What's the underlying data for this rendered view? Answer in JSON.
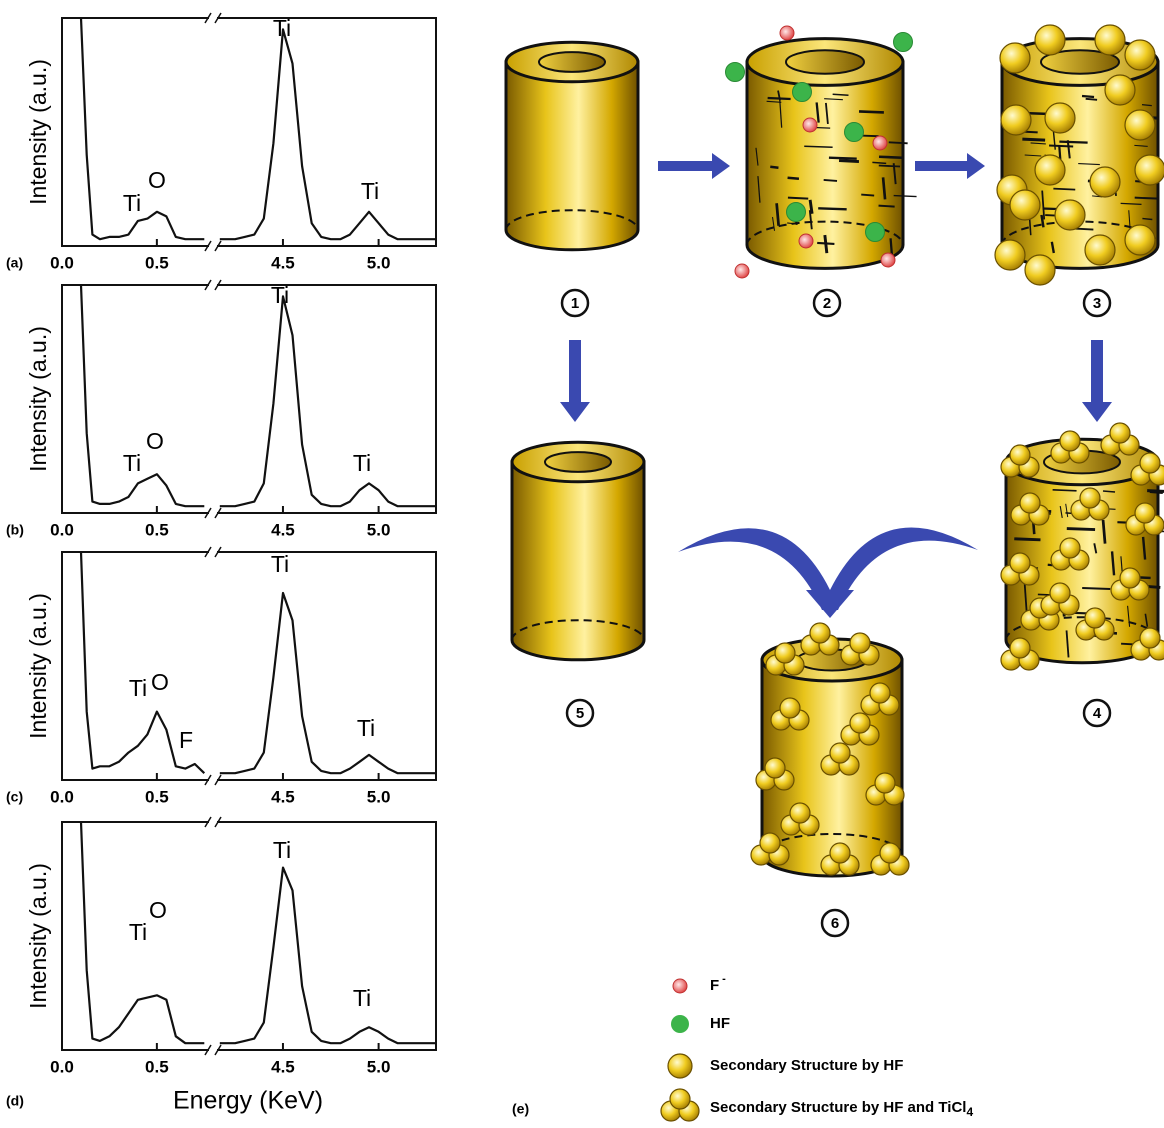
{
  "chart_data": [
    {
      "type": "line",
      "panel": "(a)",
      "ylabel": "Intensity (a.u.)",
      "color": "#111111",
      "x": [
        0.1,
        0.13,
        0.16,
        0.2,
        0.25,
        0.3,
        0.35,
        0.4,
        0.45,
        0.5,
        0.55,
        0.6,
        0.65,
        0.7,
        0.75,
        4.17,
        4.25,
        4.3,
        4.35,
        4.4,
        4.45,
        4.5,
        4.55,
        4.6,
        4.65,
        4.7,
        4.75,
        4.8,
        4.85,
        4.9,
        4.95,
        5.0,
        5.05,
        5.1,
        5.2,
        5.3
      ],
      "values": [
        100,
        40,
        5,
        3,
        4,
        4,
        5,
        11,
        12,
        15,
        13,
        4,
        3,
        3,
        3,
        3,
        3,
        4,
        5,
        12,
        45,
        95,
        80,
        35,
        10,
        4,
        3,
        3,
        5,
        10,
        15,
        10,
        5,
        3,
        3,
        3
      ],
      "xlim": [
        0,
        5.3
      ],
      "x_break": [
        0.78,
        4.15
      ],
      "ylim": [
        0,
        100
      ],
      "xticks": [
        {
          "value": 0,
          "label": "0.0"
        },
        0.5,
        4.5,
        {
          "value": 5,
          "label": "5.0"
        }
      ],
      "annotations": [
        "Ti",
        "O",
        "Ti",
        "Ti"
      ]
    },
    {
      "type": "line",
      "panel": "(b)",
      "ylabel": "Intensity (a.u.)",
      "color": "#111111",
      "x": [
        0.1,
        0.13,
        0.16,
        0.2,
        0.25,
        0.3,
        0.35,
        0.4,
        0.45,
        0.5,
        0.55,
        0.6,
        0.65,
        0.7,
        0.75,
        4.17,
        4.25,
        4.3,
        4.35,
        4.4,
        4.45,
        4.5,
        4.55,
        4.6,
        4.65,
        4.7,
        4.75,
        4.8,
        4.85,
        4.9,
        4.95,
        5.0,
        5.05,
        5.1,
        5.2,
        5.3
      ],
      "values": [
        100,
        35,
        5,
        4,
        4,
        5,
        7,
        13,
        15,
        17,
        12,
        4,
        3,
        3,
        3,
        3,
        3,
        4,
        5,
        13,
        48,
        95,
        78,
        30,
        8,
        4,
        3,
        3,
        5,
        10,
        13,
        10,
        5,
        3,
        3,
        3
      ],
      "xlim": [
        0,
        5.3
      ],
      "x_break": [
        0.78,
        4.15
      ],
      "ylim": [
        0,
        100
      ],
      "xticks": [
        {
          "value": 0,
          "label": "0.0"
        },
        0.5,
        4.5,
        {
          "value": 5,
          "label": "5.0"
        }
      ],
      "annotations": [
        "Ti",
        "O",
        "Ti",
        "Ti"
      ]
    },
    {
      "type": "line",
      "panel": "(c)",
      "ylabel": "Intensity (a.u.)",
      "color": "#111111",
      "x": [
        0.1,
        0.13,
        0.16,
        0.2,
        0.25,
        0.3,
        0.35,
        0.4,
        0.45,
        0.5,
        0.55,
        0.6,
        0.65,
        0.7,
        0.75,
        4.17,
        4.25,
        4.3,
        4.35,
        4.4,
        4.45,
        4.5,
        4.55,
        4.6,
        4.65,
        4.7,
        4.75,
        4.8,
        4.85,
        4.9,
        4.95,
        5.0,
        5.05,
        5.1,
        5.2,
        5.3
      ],
      "values": [
        100,
        30,
        5,
        6,
        6,
        8,
        12,
        15,
        20,
        30,
        22,
        6,
        5,
        7,
        3,
        3,
        3,
        4,
        5,
        12,
        45,
        82,
        70,
        28,
        8,
        4,
        3,
        3,
        5,
        8,
        11,
        8,
        5,
        3,
        3,
        3
      ],
      "xlim": [
        0,
        5.3
      ],
      "x_break": [
        0.78,
        4.15
      ],
      "ylim": [
        0,
        100
      ],
      "xticks": [
        {
          "value": 0,
          "label": "0.0"
        },
        0.5,
        4.5,
        {
          "value": 5,
          "label": "5.0"
        }
      ],
      "annotations": [
        "Ti",
        "O",
        "F",
        "Ti",
        "Ti"
      ]
    },
    {
      "type": "line",
      "panel": "(d)",
      "ylabel": "Intensity (a.u.)",
      "xlabel": "Energy (KeV)",
      "color": "#111111",
      "x": [
        0.1,
        0.13,
        0.16,
        0.2,
        0.25,
        0.3,
        0.35,
        0.4,
        0.45,
        0.5,
        0.55,
        0.6,
        0.65,
        0.7,
        0.75,
        4.17,
        4.25,
        4.3,
        4.35,
        4.4,
        4.45,
        4.5,
        4.55,
        4.6,
        4.65,
        4.7,
        4.75,
        4.8,
        4.85,
        4.9,
        4.95,
        5.0,
        5.05,
        5.1,
        5.2,
        5.3
      ],
      "values": [
        100,
        35,
        5,
        4,
        6,
        10,
        16,
        22,
        23,
        24,
        22,
        6,
        3,
        3,
        3,
        3,
        3,
        4,
        5,
        12,
        45,
        80,
        70,
        28,
        8,
        4,
        3,
        3,
        5,
        8,
        10,
        8,
        5,
        3,
        3,
        3
      ],
      "xlim": [
        0,
        5.3
      ],
      "x_break": [
        0.78,
        4.15
      ],
      "ylim": [
        0,
        100
      ],
      "xticks": [
        {
          "value": 0,
          "label": "0.0"
        },
        0.5,
        4.5,
        {
          "value": 5,
          "label": "5.0"
        }
      ],
      "annotations": [
        "Ti",
        "O",
        "Ti",
        "Ti"
      ]
    }
  ],
  "diagram": {
    "panel": "(e)",
    "steps": [
      "1",
      "2",
      "3",
      "4",
      "5",
      "6"
    ],
    "legend": [
      {
        "text": "F",
        "sup": "-"
      },
      {
        "text": "HF"
      },
      {
        "text": "Secondary Structure by HF"
      },
      {
        "text": "Secondary Structure by HF and TiCl",
        "sub": "4"
      }
    ]
  }
}
